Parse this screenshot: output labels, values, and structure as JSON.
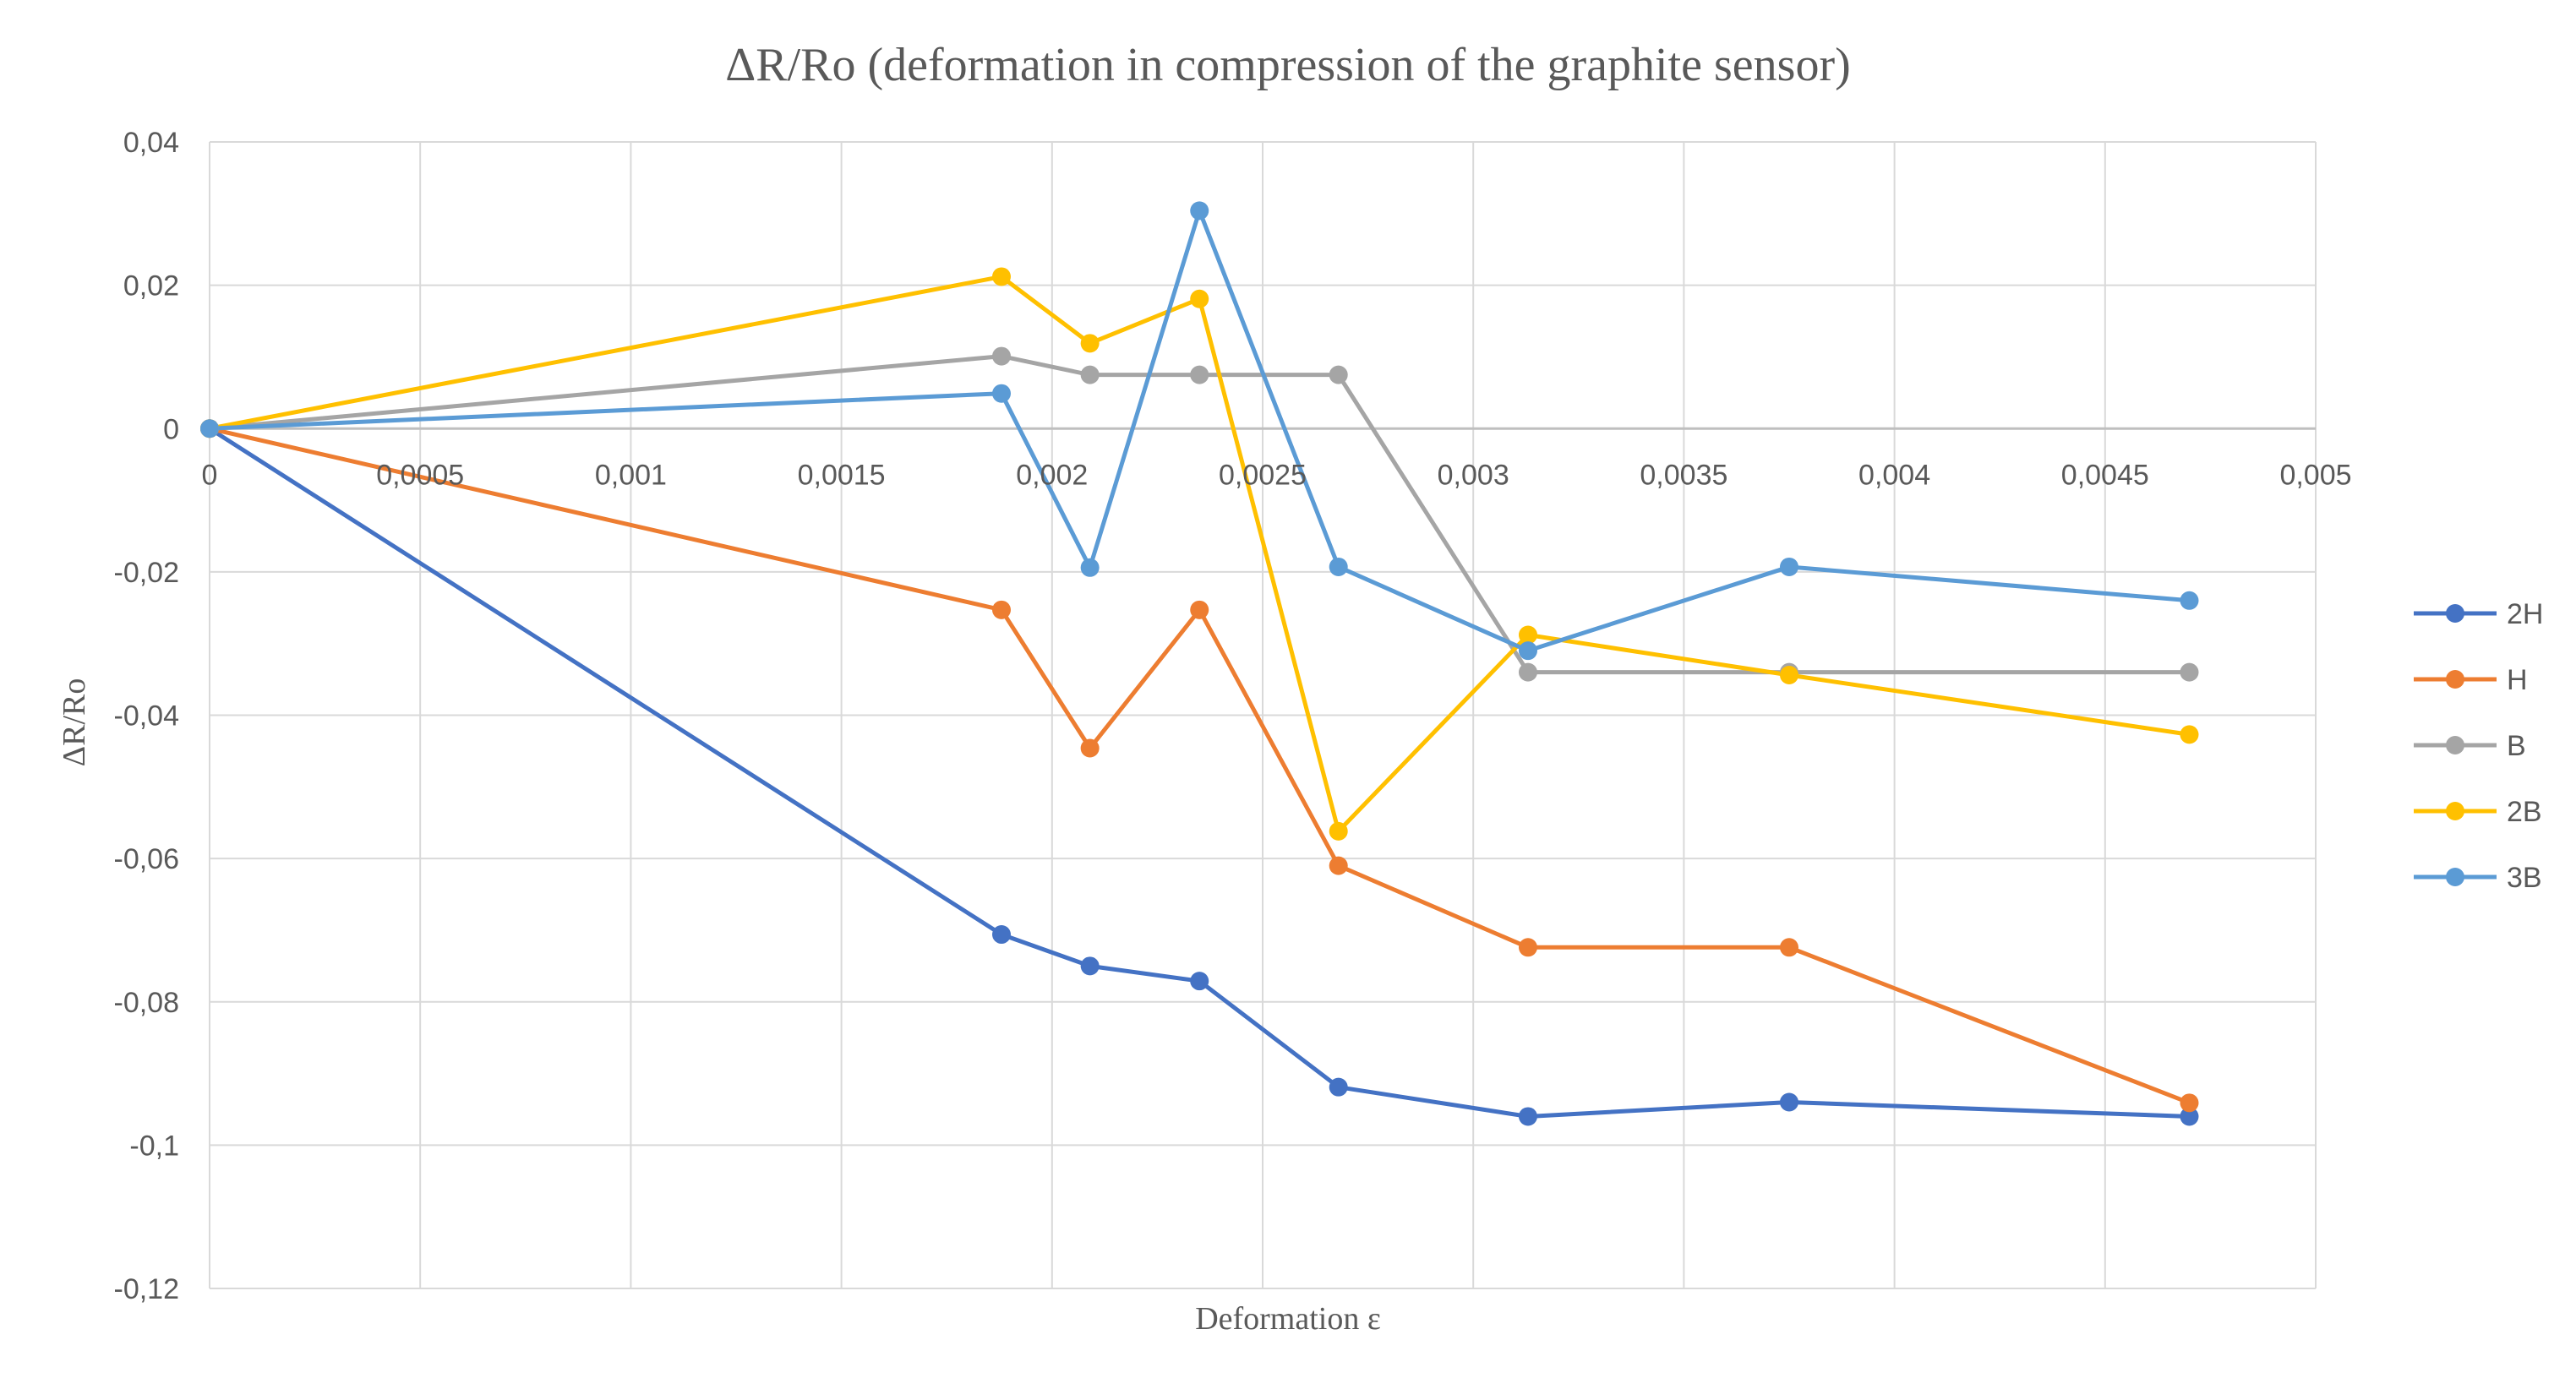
{
  "chart_data": {
    "type": "line",
    "title": "ΔR/Ro (deformation in compression of the graphite sensor)",
    "xlabel": "Deformation ε",
    "ylabel": "ΔR/Ro",
    "xlim": [
      0,
      0.005
    ],
    "ylim": [
      -0.12,
      0.04
    ],
    "x_ticks": [
      0,
      0.0005,
      0.001,
      0.0015,
      0.002,
      0.0025,
      0.003,
      0.0035,
      0.004,
      0.0045,
      0.005
    ],
    "x_tick_labels": [
      "0",
      "0,0005",
      "0,001",
      "0,0015",
      "0,002",
      "0,0025",
      "0,003",
      "0,0035",
      "0,004",
      "0,0045",
      "0,005"
    ],
    "y_ticks": [
      0.04,
      0.02,
      0,
      -0.02,
      -0.04,
      -0.06,
      -0.08,
      -0.1,
      -0.12
    ],
    "y_tick_labels": [
      "0,04",
      "0,02",
      "0",
      "-0,02",
      "-0,04",
      "-0,06",
      "-0,08",
      "-0,1",
      "-0,12"
    ],
    "grid": true,
    "legend_position": "right",
    "x": [
      0,
      0.00188,
      0.00209,
      0.00235,
      0.00268,
      0.00313,
      0.00375,
      0.0047
    ],
    "series": [
      {
        "name": "2H",
        "color": "#4472C4",
        "values": [
          0,
          -0.0706,
          -0.075,
          -0.0771,
          -0.0919,
          -0.096,
          -0.094,
          -0.096
        ]
      },
      {
        "name": "H",
        "color": "#ED7D31",
        "values": [
          0,
          -0.0253,
          -0.0446,
          -0.0253,
          -0.061,
          -0.0724,
          -0.0724,
          -0.0941
        ]
      },
      {
        "name": "B",
        "color": "#A5A5A5",
        "values": [
          0,
          0.0101,
          0.0075,
          0.0075,
          0.0075,
          -0.034,
          -0.034,
          -0.034
        ]
      },
      {
        "name": "2B",
        "color": "#FFC000",
        "values": [
          0,
          0.0212,
          0.0119,
          0.0181,
          -0.0562,
          -0.0288,
          -0.0344,
          -0.0427
        ]
      },
      {
        "name": "3B",
        "color": "#5B9BD5",
        "values": [
          0,
          0.0049,
          -0.0194,
          0.0304,
          -0.0193,
          -0.031,
          -0.0193,
          -0.024
        ]
      }
    ]
  }
}
